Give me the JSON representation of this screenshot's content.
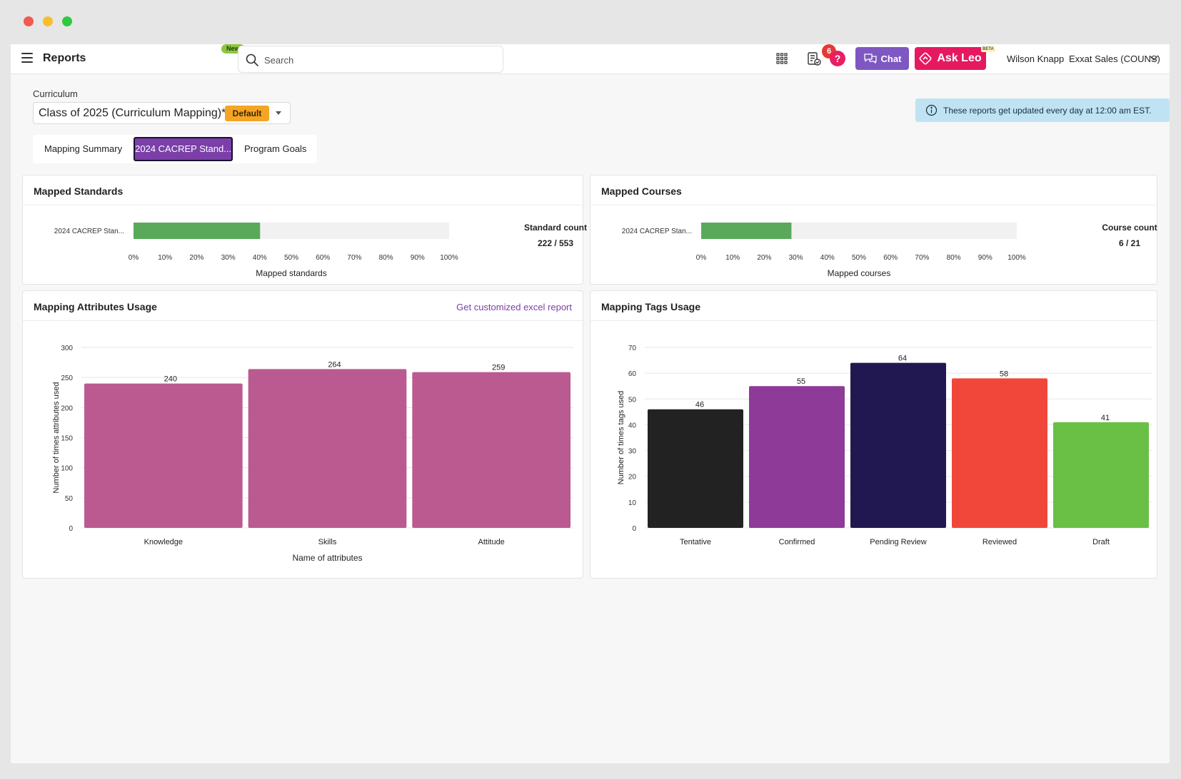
{
  "app": {
    "title": "Reports"
  },
  "header": {
    "new_badge": "New",
    "search_placeholder": "Search",
    "notification_count": "6",
    "help_label": "?",
    "chat_label": "Chat",
    "ask_leo_label": "Ask Leo",
    "beta_label": "BETA",
    "user_name": "Wilson Knapp",
    "org_name": "Exxat Sales (COUNS)"
  },
  "curriculum": {
    "label": "Curriculum",
    "value": "Class of 2025 (Curriculum Mapping)*",
    "badge": "Default"
  },
  "info_banner": "These reports get updated every day at 12:00 am EST.",
  "tabs": [
    {
      "label": "Mapping Summary"
    },
    {
      "label": "2024 CACREP Stand..."
    },
    {
      "label": "Program Goals"
    }
  ],
  "colors": {
    "accent": "#7b3fa8",
    "progress_fill": "#5aa95a",
    "attr_bar": "#bb5a90"
  },
  "mapped_standards": {
    "title": "Mapped Standards",
    "count_label": "Standard count",
    "count_value": "222 / 553"
  },
  "mapped_courses": {
    "title": "Mapped Courses",
    "count_label": "Course count",
    "count_value": "6 / 21"
  },
  "attributes": {
    "title": "Mapping Attributes Usage",
    "link": "Get customized excel report"
  },
  "tags": {
    "title": "Mapping Tags Usage"
  },
  "chart_data": [
    {
      "id": "standards",
      "type": "bar",
      "orientation": "horizontal",
      "categories": [
        "2024 CACREP Stan..."
      ],
      "values": [
        40.1
      ],
      "xlim": [
        0,
        100
      ],
      "xticks": [
        "0%",
        "10%",
        "20%",
        "30%",
        "40%",
        "50%",
        "60%",
        "70%",
        "80%",
        "90%",
        "100%"
      ],
      "xlabel": "Mapped standards"
    },
    {
      "id": "courses",
      "type": "bar",
      "orientation": "horizontal",
      "categories": [
        "2024 CACREP Stan..."
      ],
      "values": [
        28.6
      ],
      "xlim": [
        0,
        100
      ],
      "xticks": [
        "0%",
        "10%",
        "20%",
        "30%",
        "40%",
        "50%",
        "60%",
        "70%",
        "80%",
        "90%",
        "100%"
      ],
      "xlabel": "Mapped courses"
    },
    {
      "id": "attributes",
      "type": "bar",
      "categories": [
        "Knowledge",
        "Skills",
        "Attitude"
      ],
      "values": [
        240,
        264,
        259
      ],
      "ylim": [
        0,
        300
      ],
      "yticks": [
        "0",
        "50",
        "100",
        "150",
        "200",
        "250",
        "300"
      ],
      "xlabel": "Name of attributes",
      "ylabel": "Number of times attributes used",
      "colors": [
        "#bb5a90",
        "#bb5a90",
        "#bb5a90"
      ]
    },
    {
      "id": "tags",
      "type": "bar",
      "categories": [
        "Tentative",
        "Confirmed",
        "Pending Review",
        "Reviewed",
        "Draft"
      ],
      "values": [
        46,
        55,
        64,
        58,
        41
      ],
      "ylim": [
        0,
        70
      ],
      "yticks": [
        "0",
        "10",
        "20",
        "30",
        "40",
        "50",
        "60",
        "70"
      ],
      "ylabel": "Number of times tags used",
      "colors": [
        "#222222",
        "#8e3a98",
        "#211852",
        "#f0473a",
        "#6abf45"
      ]
    }
  ]
}
